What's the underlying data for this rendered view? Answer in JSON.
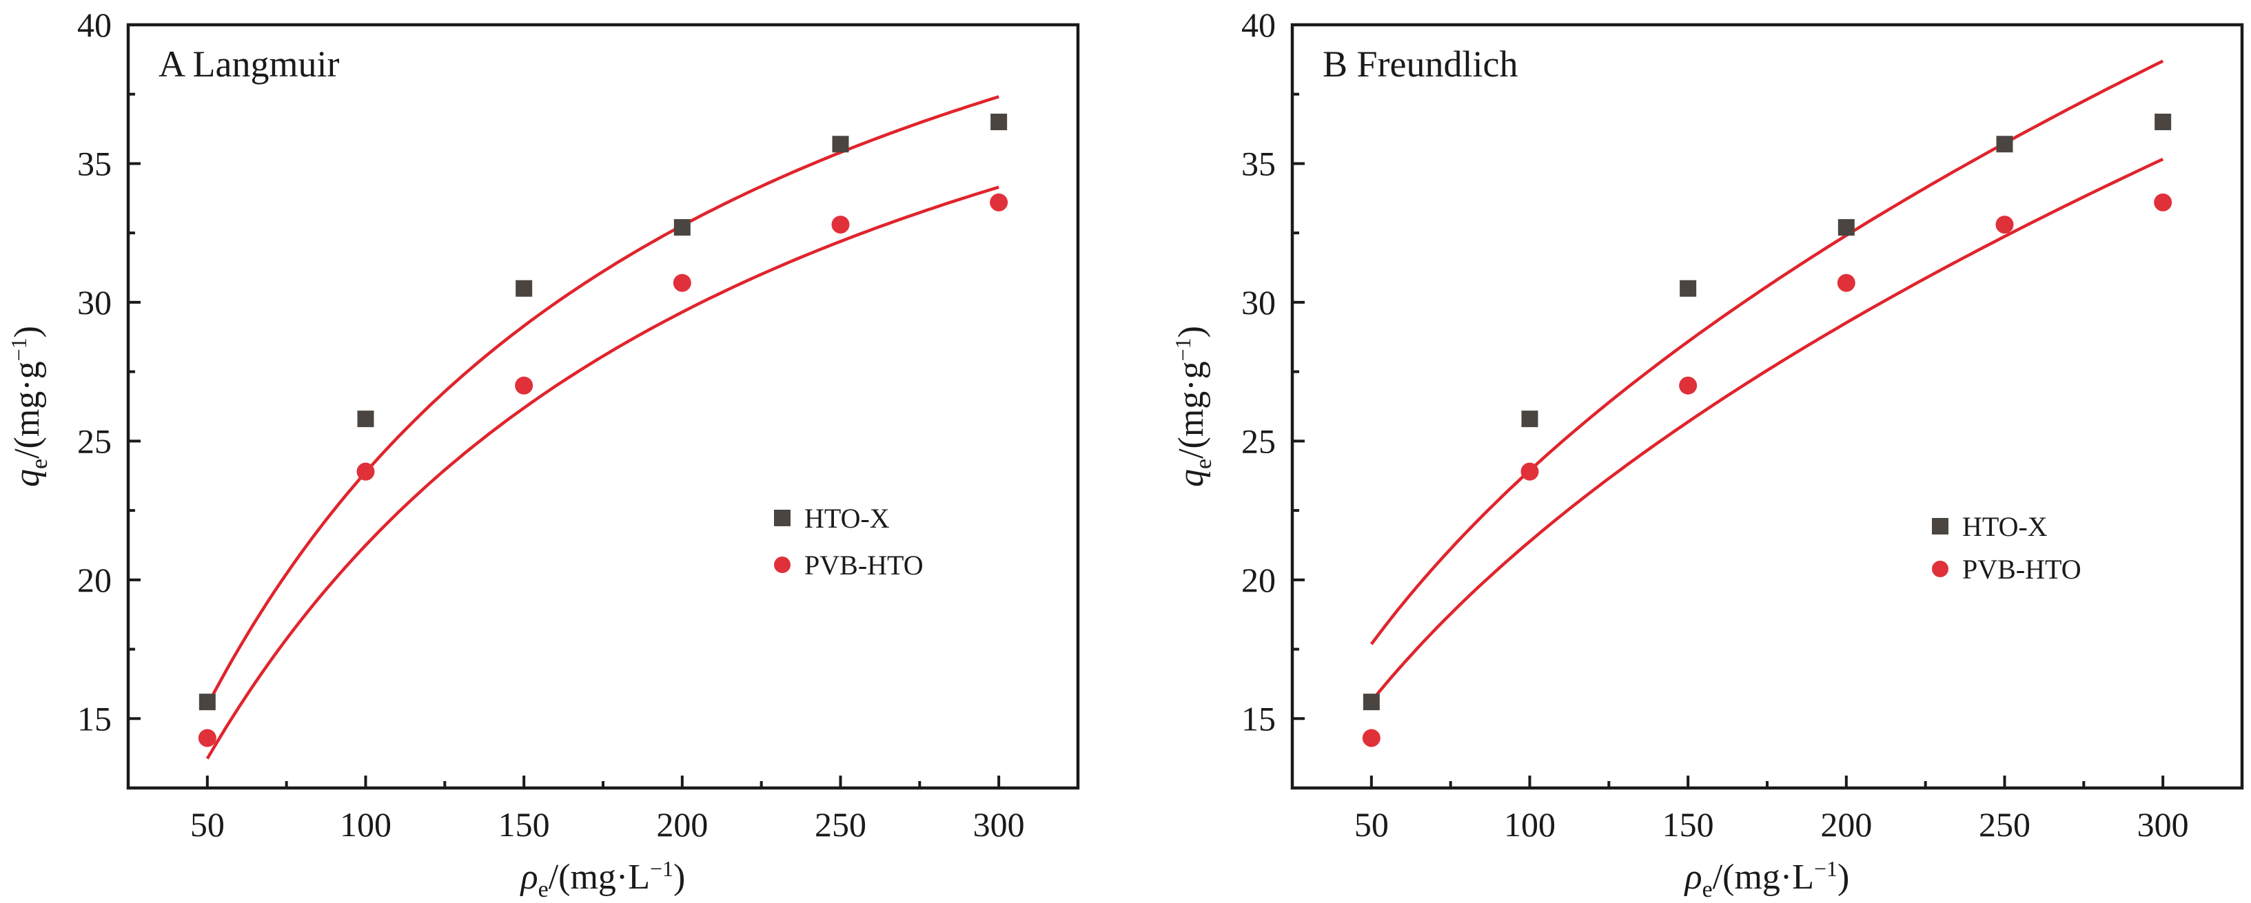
{
  "chart_data": [
    {
      "type": "scatter",
      "title": "A Langmuir",
      "xlabel": {
        "symbol": "ρ",
        "sub": "e",
        "unit_pre": "/(mg·L",
        "sup": "−1",
        "unit_post": ")"
      },
      "ylabel": {
        "symbol": "q",
        "sub": "e",
        "unit_pre": "/(mg·g",
        "sup": "−1",
        "unit_post": ")"
      },
      "xlim": [
        25,
        325
      ],
      "ylim": [
        12.5,
        40
      ],
      "x_ticks": [
        50,
        100,
        150,
        200,
        250,
        300
      ],
      "y_ticks": [
        15,
        20,
        25,
        30,
        35,
        40
      ],
      "grid": false,
      "legend_position": "right-middle",
      "series": [
        {
          "name": "HTO-X",
          "marker": "square",
          "color": "#4a4540",
          "x": [
            50,
            100,
            150,
            200,
            250,
            300
          ],
          "y": [
            15.6,
            25.8,
            30.5,
            32.7,
            35.7,
            36.5
          ],
          "fit": {
            "model": "langmuir",
            "qm": 52.2,
            "KL": 0.00843,
            "x_range": [
              50,
              300
            ]
          }
        },
        {
          "name": "PVB-HTO",
          "marker": "circle",
          "color": "#e0303a",
          "x": [
            50,
            100,
            150,
            200,
            250,
            300
          ],
          "y": [
            14.3,
            23.9,
            27.0,
            30.7,
            32.8,
            33.6
          ],
          "fit": {
            "model": "langmuir",
            "qm": 49.05,
            "KL": 0.00764,
            "x_range": [
              50,
              300
            ]
          }
        }
      ],
      "fit_color": "#e0242c"
    },
    {
      "type": "scatter",
      "title": "B Freundlich",
      "xlabel": {
        "symbol": "ρ",
        "sub": "e",
        "unit_pre": "/(mg·L",
        "sup": "−1",
        "unit_post": ")"
      },
      "ylabel": {
        "symbol": "q",
        "sub": "e",
        "unit_pre": "/(mg·g",
        "sup": "−1",
        "unit_post": ")"
      },
      "xlim": [
        25,
        325
      ],
      "ylim": [
        12.5,
        40
      ],
      "x_ticks": [
        50,
        100,
        150,
        200,
        250,
        300
      ],
      "y_ticks": [
        15,
        20,
        25,
        30,
        35,
        40
      ],
      "grid": false,
      "legend_position": "right-middle",
      "series": [
        {
          "name": "HTO-X",
          "marker": "square",
          "color": "#4a4540",
          "x": [
            50,
            100,
            150,
            200,
            250,
            300
          ],
          "y": [
            15.6,
            25.8,
            30.5,
            32.7,
            35.7,
            36.5
          ],
          "fit": {
            "model": "freundlich",
            "KF": 3.2,
            "n_inv": 0.437,
            "x_range": [
              50,
              300
            ]
          }
        },
        {
          "name": "PVB-HTO",
          "marker": "circle",
          "color": "#e0303a",
          "x": [
            50,
            100,
            150,
            200,
            250,
            300
          ],
          "y": [
            14.3,
            23.9,
            27.0,
            30.7,
            32.8,
            33.6
          ],
          "fit": {
            "model": "freundlich",
            "KF": 2.66,
            "n_inv": 0.4526,
            "x_range": [
              50,
              300
            ]
          }
        }
      ],
      "fit_color": "#e0242c"
    }
  ]
}
